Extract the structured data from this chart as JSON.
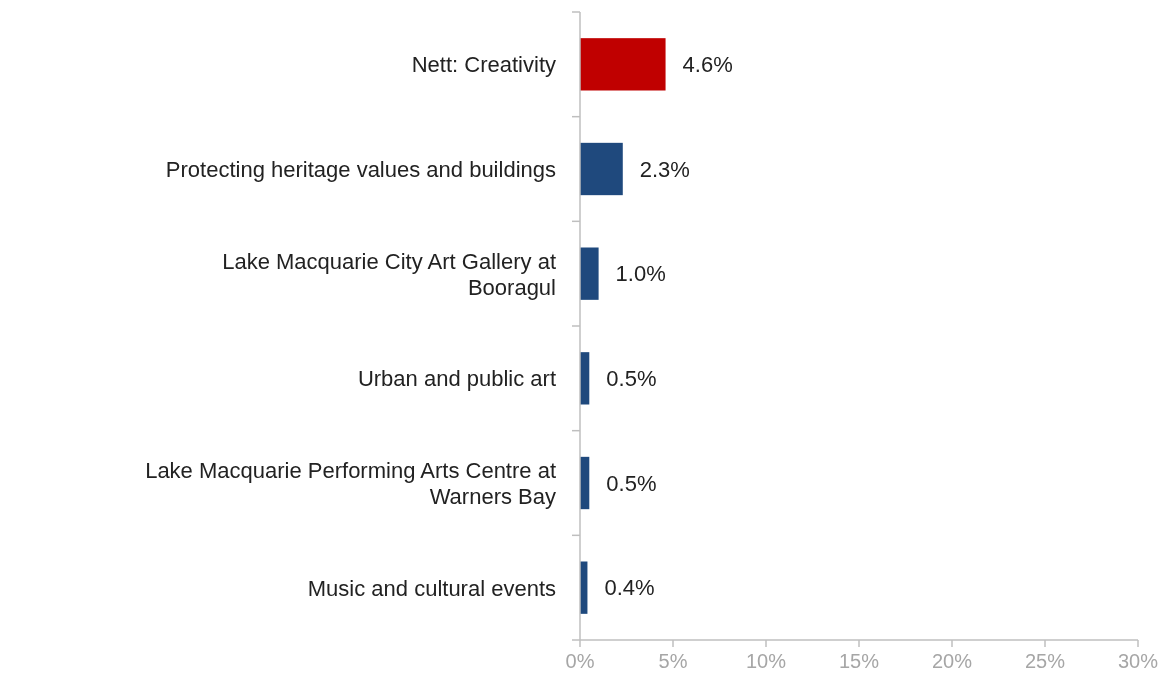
{
  "chart_data": {
    "type": "bar",
    "orientation": "horizontal",
    "categories": [
      "Nett: Creativity",
      "Protecting heritage values and buildings",
      "Lake Macquarie City Art Gallery at Booragul",
      "Urban and public art",
      "Lake Macquarie Performing Arts Centre at Warners Bay",
      "Music and cultural events"
    ],
    "values": [
      4.6,
      2.3,
      1.0,
      0.5,
      0.5,
      0.4
    ],
    "value_labels": [
      "4.6%",
      "2.3%",
      "1.0%",
      "0.5%",
      "0.5%",
      "0.4%"
    ],
    "colors": [
      "#c00000",
      "#1f497d",
      "#1f497d",
      "#1f497d",
      "#1f497d",
      "#1f497d"
    ],
    "xlim": [
      0,
      30
    ],
    "xticks": [
      {
        "value": 0,
        "label": "0%"
      },
      {
        "value": 5,
        "label": "5%"
      },
      {
        "value": 10,
        "label": "10%"
      },
      {
        "value": 15,
        "label": "15%"
      },
      {
        "value": 20,
        "label": "20%"
      },
      {
        "value": 25,
        "label": "25%"
      },
      {
        "value": 30,
        "label": "30%"
      }
    ],
    "grid": false
  }
}
